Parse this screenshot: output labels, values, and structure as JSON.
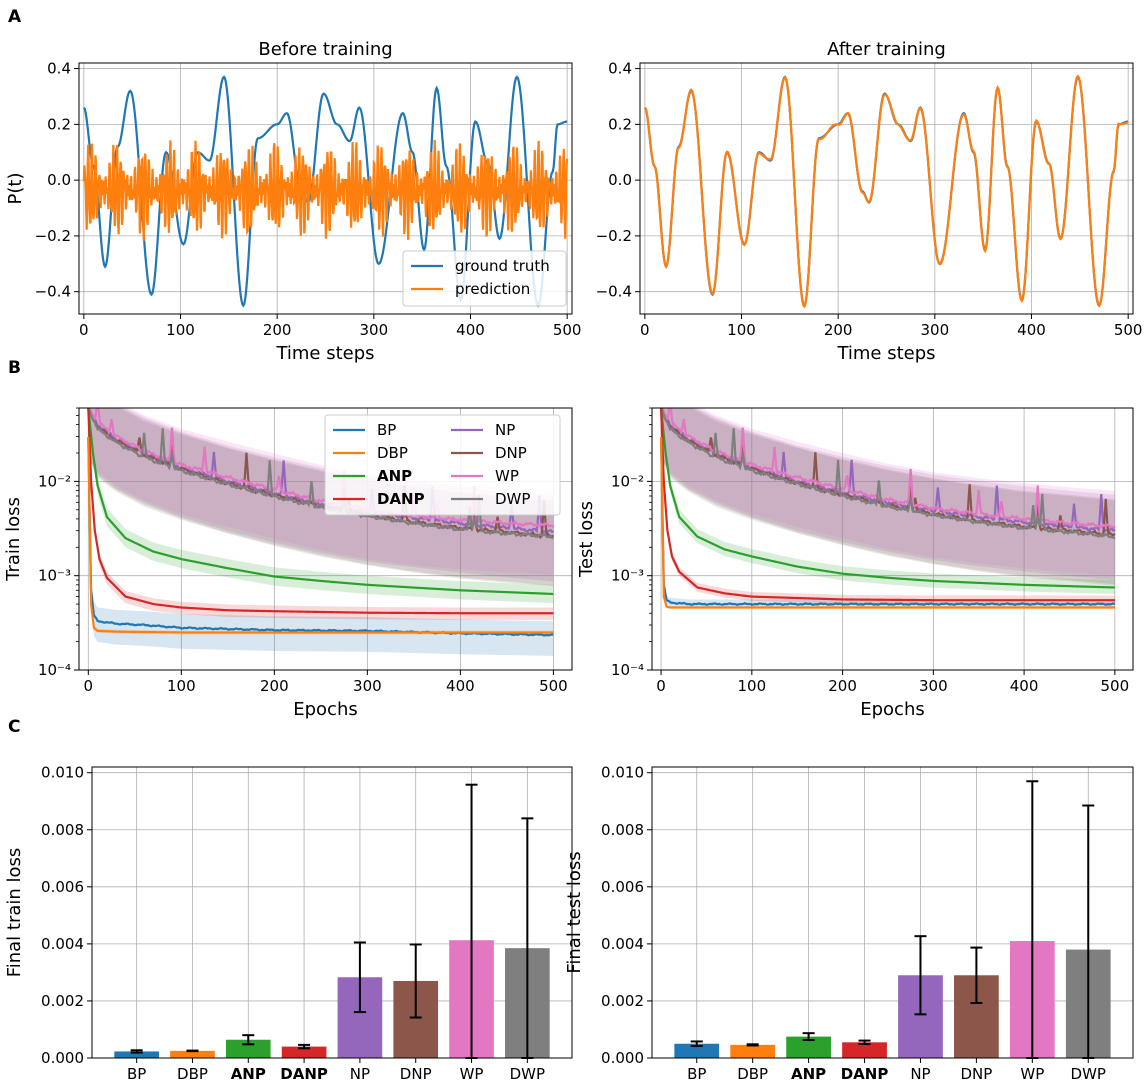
{
  "panel_letters": {
    "a": "A",
    "b": "B",
    "c": "C"
  },
  "colors": {
    "BP": "#1f77b4",
    "DBP": "#ff7f0e",
    "ANP": "#2ca02c",
    "DANP": "#d62728",
    "NP": "#9467bd",
    "DNP": "#8c564b",
    "WP": "#e377c2",
    "DWP": "#7f7f7f",
    "grid": "#b0b0b0"
  },
  "chart_data": [
    {
      "id": "a_before",
      "type": "line",
      "title": "Before training",
      "xlabel": "Time steps",
      "ylabel": "P(t)",
      "xlim": [
        -5,
        505
      ],
      "ylim": [
        -0.48,
        0.42
      ],
      "xticks": [
        0,
        100,
        200,
        300,
        400,
        500
      ],
      "xtick_labels": [
        "0",
        "100",
        "200",
        "300",
        "400",
        "500"
      ],
      "yticks": [
        -0.4,
        -0.2,
        0.0,
        0.2,
        0.4
      ],
      "ytick_labels": [
        "−0.4",
        "−0.2",
        "0.0",
        "0.2",
        "0.4"
      ],
      "legend": {
        "position": "lower-right",
        "entries": [
          "ground truth",
          "prediction"
        ]
      },
      "series": [
        {
          "name": "ground truth",
          "color_key": "BP",
          "x": [
            0,
            10,
            22,
            35,
            48,
            70,
            85,
            103,
            118,
            130,
            145,
            165,
            180,
            200,
            210,
            225,
            232,
            248,
            262,
            275,
            285,
            305,
            330,
            340,
            352,
            365,
            375,
            390,
            405,
            418,
            430,
            448,
            470,
            485,
            490,
            500
          ],
          "y": [
            0.26,
            0.05,
            -0.31,
            0.12,
            0.32,
            -0.41,
            0.1,
            -0.23,
            0.1,
            0.07,
            0.37,
            -0.45,
            0.15,
            0.2,
            0.24,
            -0.04,
            -0.08,
            0.31,
            0.2,
            0.14,
            0.26,
            -0.3,
            0.24,
            0.1,
            -0.25,
            0.33,
            0.05,
            -0.43,
            0.21,
            0.06,
            -0.21,
            0.37,
            -0.45,
            0.03,
            0.2,
            0.21
          ]
        },
        {
          "name": "prediction",
          "color_key": "DBP",
          "x_range": [
            0,
            500
          ],
          "envelope": [
            -0.22,
            0.15
          ],
          "description": "high-frequency oscillation around 0"
        }
      ]
    },
    {
      "id": "a_after",
      "type": "line",
      "title": "After training",
      "xlabel": "Time steps",
      "ylabel": "",
      "xlim": [
        -5,
        505
      ],
      "ylim": [
        -0.48,
        0.42
      ],
      "xticks": [
        0,
        100,
        200,
        300,
        400,
        500
      ],
      "xtick_labels": [
        "0",
        "100",
        "200",
        "300",
        "400",
        "500"
      ],
      "yticks": [
        -0.4,
        -0.2,
        0.0,
        0.2,
        0.4
      ],
      "ytick_labels": [
        "−0.4",
        "−0.2",
        "0.0",
        "0.2",
        "0.4"
      ],
      "series": [
        {
          "name": "ground truth",
          "color_key": "BP",
          "same_as": "a_before.ground truth"
        },
        {
          "name": "prediction",
          "color_key": "DBP",
          "same_as": "a_before.ground truth"
        }
      ]
    },
    {
      "id": "b_train",
      "type": "line",
      "yscale": "log",
      "xlabel": "Epochs",
      "ylabel": "Train loss",
      "xlim": [
        -10,
        520
      ],
      "ylim": [
        0.0001,
        0.06
      ],
      "xticks": [
        0,
        100,
        200,
        300,
        400,
        500
      ],
      "xtick_labels": [
        "0",
        "100",
        "200",
        "300",
        "400",
        "500"
      ],
      "yticks": [
        0.0001,
        0.001,
        0.01
      ],
      "ytick_labels": [
        "10⁻⁴",
        "10⁻³",
        "10⁻²"
      ],
      "legend": {
        "position": "top-center",
        "columns": 2,
        "entries": [
          "BP",
          "DBP",
          "ANP",
          "DANP",
          "NP",
          "DNP",
          "WP",
          "DWP"
        ],
        "bold": [
          "ANP",
          "DANP"
        ]
      },
      "series": [
        {
          "name": "BP",
          "x": [
            0,
            3,
            6,
            10,
            30,
            60,
            100,
            200,
            300,
            400,
            500
          ],
          "y": [
            0.03,
            0.0007,
            0.00038,
            0.00033,
            0.00031,
            0.0003,
            0.00028,
            0.000265,
            0.00026,
            0.000245,
            0.000235
          ],
          "band": [
            0.6,
            1.4
          ]
        },
        {
          "name": "DBP",
          "x": [
            0,
            3,
            6,
            10,
            30,
            100,
            200,
            300,
            400,
            500
          ],
          "y": [
            0.03,
            0.0005,
            0.00028,
            0.00026,
            0.000255,
            0.00025,
            0.00025,
            0.00025,
            0.00025,
            0.00025
          ],
          "band": [
            0.95,
            1.05
          ]
        },
        {
          "name": "ANP",
          "x": [
            0,
            5,
            10,
            20,
            40,
            70,
            100,
            150,
            200,
            250,
            300,
            400,
            500
          ],
          "y": [
            0.06,
            0.02,
            0.009,
            0.0042,
            0.0025,
            0.0018,
            0.0015,
            0.0012,
            0.00098,
            0.00088,
            0.0008,
            0.0007,
            0.00064
          ],
          "band": [
            0.8,
            1.25
          ]
        },
        {
          "name": "DANP",
          "x": [
            0,
            3,
            7,
            12,
            20,
            40,
            70,
            100,
            150,
            200,
            300,
            400,
            500
          ],
          "y": [
            0.06,
            0.01,
            0.003,
            0.0015,
            0.00095,
            0.0006,
            0.0005,
            0.00046,
            0.00043,
            0.00042,
            0.000405,
            0.0004,
            0.0004
          ],
          "band": [
            0.85,
            1.15
          ]
        },
        {
          "name": "NP",
          "x": [
            0,
            10,
            30,
            60,
            100,
            150,
            200,
            250,
            300,
            350,
            400,
            450,
            500
          ],
          "y": [
            0.06,
            0.04,
            0.028,
            0.02,
            0.014,
            0.01,
            0.0075,
            0.0058,
            0.0047,
            0.0041,
            0.0036,
            0.0032,
            0.0029
          ],
          "band": [
            0.3,
            2.4
          ]
        },
        {
          "name": "DNP",
          "x": [
            0,
            10,
            30,
            60,
            100,
            150,
            200,
            250,
            300,
            350,
            400,
            450,
            500
          ],
          "y": [
            0.06,
            0.038,
            0.027,
            0.019,
            0.0135,
            0.0095,
            0.0071,
            0.0055,
            0.0044,
            0.0037,
            0.0032,
            0.0029,
            0.0026
          ],
          "band": [
            0.3,
            2.4
          ]
        },
        {
          "name": "WP",
          "x": [
            0,
            10,
            30,
            60,
            100,
            150,
            200,
            250,
            300,
            350,
            400,
            450,
            500
          ],
          "y": [
            0.06,
            0.042,
            0.03,
            0.021,
            0.015,
            0.011,
            0.0082,
            0.0062,
            0.005,
            0.0043,
            0.0039,
            0.0036,
            0.0034
          ],
          "band": [
            0.3,
            2.4
          ]
        },
        {
          "name": "DWP",
          "x": [
            0,
            10,
            30,
            60,
            100,
            150,
            200,
            250,
            300,
            350,
            400,
            450,
            500
          ],
          "y": [
            0.06,
            0.036,
            0.026,
            0.018,
            0.013,
            0.0093,
            0.0069,
            0.0053,
            0.0043,
            0.0036,
            0.0031,
            0.0028,
            0.0026
          ],
          "band": [
            0.3,
            2.4
          ]
        }
      ]
    },
    {
      "id": "b_test",
      "type": "line",
      "yscale": "log",
      "xlabel": "Epochs",
      "ylabel": "Test loss",
      "xlim": [
        -10,
        520
      ],
      "ylim": [
        0.0001,
        0.06
      ],
      "xticks": [
        0,
        100,
        200,
        300,
        400,
        500
      ],
      "xtick_labels": [
        "0",
        "100",
        "200",
        "300",
        "400",
        "500"
      ],
      "yticks": [
        0.0001,
        0.001,
        0.01
      ],
      "ytick_labels": [
        "10⁻⁴",
        "10⁻³",
        "10⁻²"
      ],
      "series": [
        {
          "name": "BP",
          "x": [
            0,
            3,
            6,
            10,
            30,
            60,
            100,
            200,
            300,
            400,
            500
          ],
          "y": [
            0.03,
            0.0008,
            0.00055,
            0.00052,
            0.0005,
            0.0005,
            0.0005,
            0.0005,
            0.0005,
            0.0005,
            0.0005
          ],
          "band": [
            0.9,
            1.12
          ]
        },
        {
          "name": "DBP",
          "x": [
            0,
            3,
            6,
            10,
            30,
            100,
            200,
            300,
            400,
            500
          ],
          "y": [
            0.03,
            0.0006,
            0.00047,
            0.00046,
            0.00046,
            0.00046,
            0.00046,
            0.00046,
            0.00046,
            0.00046
          ],
          "band": [
            0.97,
            1.03
          ]
        },
        {
          "name": "ANP",
          "x": [
            0,
            5,
            10,
            20,
            40,
            70,
            100,
            150,
            200,
            250,
            300,
            400,
            500
          ],
          "y": [
            0.06,
            0.02,
            0.009,
            0.0042,
            0.0026,
            0.0019,
            0.0016,
            0.00125,
            0.00105,
            0.00095,
            0.00088,
            0.0008,
            0.00075
          ],
          "band": [
            0.85,
            1.2
          ]
        },
        {
          "name": "DANP",
          "x": [
            0,
            3,
            7,
            12,
            20,
            40,
            70,
            100,
            150,
            200,
            300,
            400,
            500
          ],
          "y": [
            0.06,
            0.01,
            0.003,
            0.0016,
            0.0011,
            0.00075,
            0.00065,
            0.0006,
            0.00058,
            0.00056,
            0.00055,
            0.00055,
            0.00055
          ],
          "band": [
            0.9,
            1.12
          ]
        },
        {
          "name": "NP",
          "x": [
            0,
            10,
            30,
            60,
            100,
            150,
            200,
            250,
            300,
            350,
            400,
            450,
            500
          ],
          "y": [
            0.06,
            0.04,
            0.028,
            0.02,
            0.014,
            0.01,
            0.0076,
            0.006,
            0.0049,
            0.0042,
            0.0037,
            0.0033,
            0.003
          ],
          "band": [
            0.3,
            2.4
          ]
        },
        {
          "name": "DNP",
          "x": [
            0,
            10,
            30,
            60,
            100,
            150,
            200,
            250,
            300,
            350,
            400,
            450,
            500
          ],
          "y": [
            0.06,
            0.038,
            0.027,
            0.019,
            0.0136,
            0.0096,
            0.0072,
            0.0056,
            0.0045,
            0.0038,
            0.0033,
            0.003,
            0.0027
          ],
          "band": [
            0.3,
            2.4
          ]
        },
        {
          "name": "WP",
          "x": [
            0,
            10,
            30,
            60,
            100,
            150,
            200,
            250,
            300,
            350,
            400,
            450,
            500
          ],
          "y": [
            0.06,
            0.042,
            0.03,
            0.021,
            0.015,
            0.011,
            0.0083,
            0.0064,
            0.0052,
            0.0045,
            0.004,
            0.0036,
            0.0033
          ],
          "band": [
            0.3,
            2.4
          ]
        },
        {
          "name": "DWP",
          "x": [
            0,
            10,
            30,
            60,
            100,
            150,
            200,
            250,
            300,
            350,
            400,
            450,
            500
          ],
          "y": [
            0.06,
            0.036,
            0.026,
            0.018,
            0.013,
            0.0094,
            0.007,
            0.0054,
            0.0044,
            0.0037,
            0.0032,
            0.0029,
            0.0026
          ],
          "band": [
            0.3,
            2.4
          ]
        }
      ]
    },
    {
      "id": "c_train",
      "type": "bar",
      "ylabel": "Final train loss",
      "ylim": [
        0,
        0.0102
      ],
      "yticks": [
        0,
        0.002,
        0.004,
        0.006,
        0.008,
        0.01
      ],
      "ytick_labels": [
        "0.000",
        "0.002",
        "0.004",
        "0.006",
        "0.008",
        "0.010"
      ],
      "categories": [
        "BP",
        "DBP",
        "ANP",
        "DANP",
        "NP",
        "DNP",
        "WP",
        "DWP"
      ],
      "bold_categories": [
        "ANP",
        "DANP"
      ],
      "values": [
        0.00023,
        0.00025,
        0.00064,
        0.0004,
        0.00283,
        0.0027,
        0.00413,
        0.00385
      ],
      "errors": [
        4e-05,
        1e-05,
        0.00016,
        6e-05,
        0.00122,
        0.00128,
        0.00545,
        0.00455
      ]
    },
    {
      "id": "c_test",
      "type": "bar",
      "ylabel": "Final test loss",
      "ylim": [
        0,
        0.0102
      ],
      "yticks": [
        0,
        0.002,
        0.004,
        0.006,
        0.008,
        0.01
      ],
      "ytick_labels": [
        "0.000",
        "0.002",
        "0.004",
        "0.006",
        "0.008",
        "0.010"
      ],
      "categories": [
        "BP",
        "DBP",
        "ANP",
        "DANP",
        "NP",
        "DNP",
        "WP",
        "DWP"
      ],
      "bold_categories": [
        "ANP",
        "DANP"
      ],
      "values": [
        0.0005,
        0.00046,
        0.00075,
        0.00055,
        0.0029,
        0.0029,
        0.0041,
        0.0038
      ],
      "errors": [
        8e-05,
        2e-05,
        0.00012,
        6e-05,
        0.00137,
        0.00097,
        0.0056,
        0.00505
      ]
    }
  ]
}
